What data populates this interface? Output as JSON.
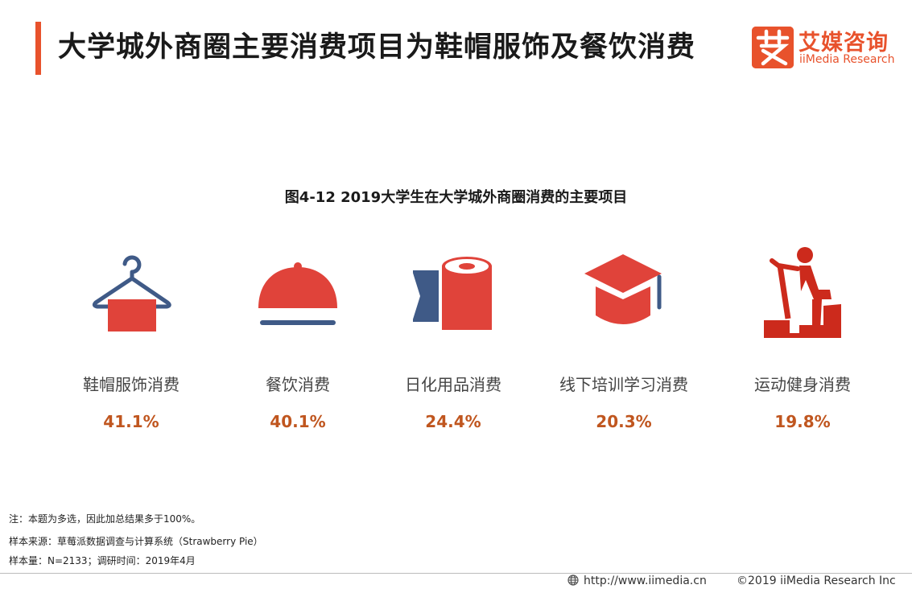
{
  "header": {
    "title": "大学城外商圈主要消费项目为鞋帽服饰及餐饮消费",
    "accent_color": "#e8522c"
  },
  "logo": {
    "cn": "艾媒咨询",
    "en": "iiMedia Research",
    "mark_glyph": "艾"
  },
  "figure_title": "图4-12 2019大学生在大学城外商圈消费的主要项目",
  "chart_data": {
    "type": "table",
    "title": "图4-12 2019大学生在大学城外商圈消费的主要项目",
    "categories": [
      "鞋帽服饰消费",
      "餐饮消费",
      "日化用品消费",
      "线下培训学习消费",
      "运动健身消费"
    ],
    "values": [
      41.1,
      40.1,
      24.4,
      20.3,
      19.8
    ],
    "value_labels": [
      "41.1%",
      "40.1%",
      "24.4%",
      "20.3%",
      "19.8%"
    ],
    "icons": [
      "hanger-icon",
      "food-cloche-icon",
      "toilet-paper-icon",
      "graduation-cap-icon",
      "exercise-bike-icon"
    ]
  },
  "colors": {
    "red": "#e0433a",
    "blue": "#3f5a87",
    "value": "#c0561f"
  },
  "notes": {
    "note": "注：本题为多选，因此加总结果多于100%。",
    "source": "样本来源：草莓派数据调查与计算系统（Strawberry Pie）",
    "sample": "样本量：N=2133；调研时间：2019年4月"
  },
  "footer": {
    "url": "http://www.iimedia.cn",
    "copyright": "©2019  iiMedia Research  Inc"
  }
}
